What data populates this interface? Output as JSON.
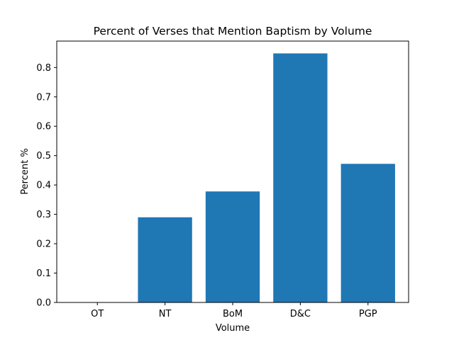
{
  "chart_data": {
    "type": "bar",
    "title": "Percent of Verses that Mention Baptism by Volume",
    "xlabel": "Volume",
    "ylabel": "Percent %",
    "categories": [
      "OT",
      "NT",
      "BoM",
      "D&C",
      "PGP"
    ],
    "values": [
      0.0,
      0.29,
      0.378,
      0.848,
      0.472
    ],
    "ylim": [
      0,
      0.89
    ],
    "yticks": [
      0.0,
      0.1,
      0.2,
      0.3,
      0.4,
      0.5,
      0.6,
      0.7,
      0.8
    ],
    "ytick_labels": [
      "0.0",
      "0.1",
      "0.2",
      "0.3",
      "0.4",
      "0.5",
      "0.6",
      "0.7",
      "0.8"
    ],
    "grid": false,
    "legend": "none",
    "bar_color": "#1f77b4"
  }
}
